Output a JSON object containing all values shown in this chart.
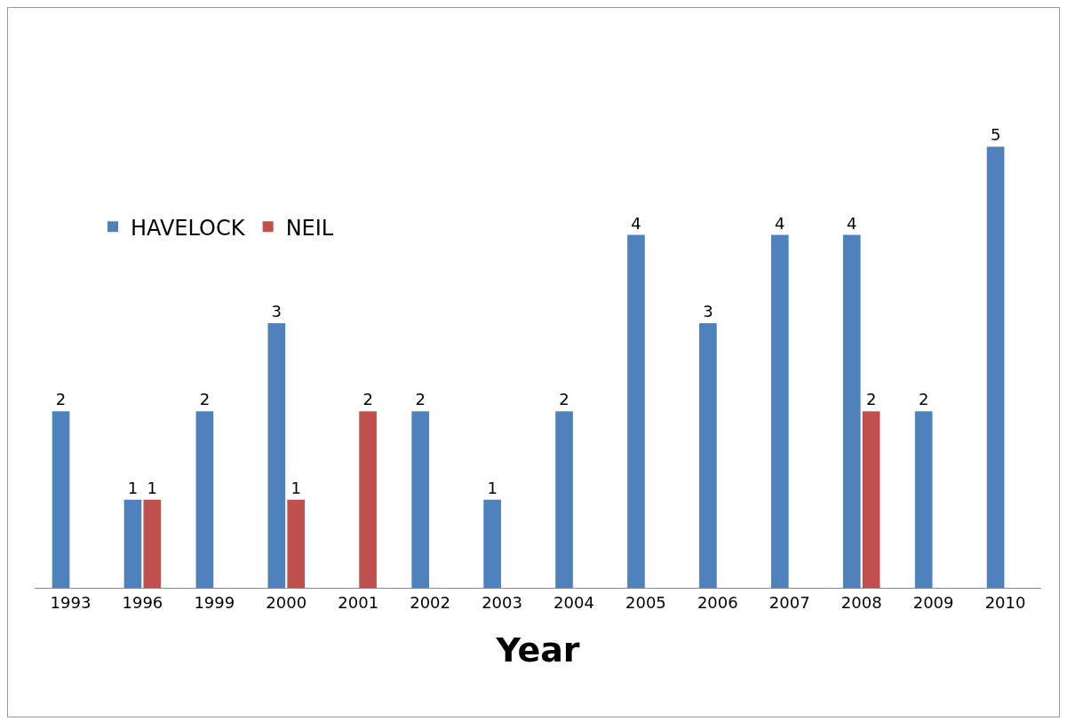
{
  "chart_data": {
    "type": "bar",
    "xlabel": "Year",
    "categories": [
      "1993",
      "1996",
      "1999",
      "2000",
      "2001",
      "2002",
      "2003",
      "2004",
      "2005",
      "2006",
      "2007",
      "2008",
      "2009",
      "2010"
    ],
    "series": [
      {
        "name": "HAVELOCK",
        "color": "#4f81bd",
        "values": [
          2,
          1,
          2,
          3,
          null,
          2,
          1,
          2,
          4,
          3,
          4,
          4,
          2,
          5
        ]
      },
      {
        "name": "NEIL",
        "color": "#c0504d",
        "values": [
          null,
          1,
          null,
          1,
          2,
          null,
          null,
          null,
          null,
          null,
          null,
          2,
          null,
          null
        ]
      }
    ],
    "data_labels": true,
    "legend": "top left",
    "grid": false,
    "tick_labels": "x"
  }
}
